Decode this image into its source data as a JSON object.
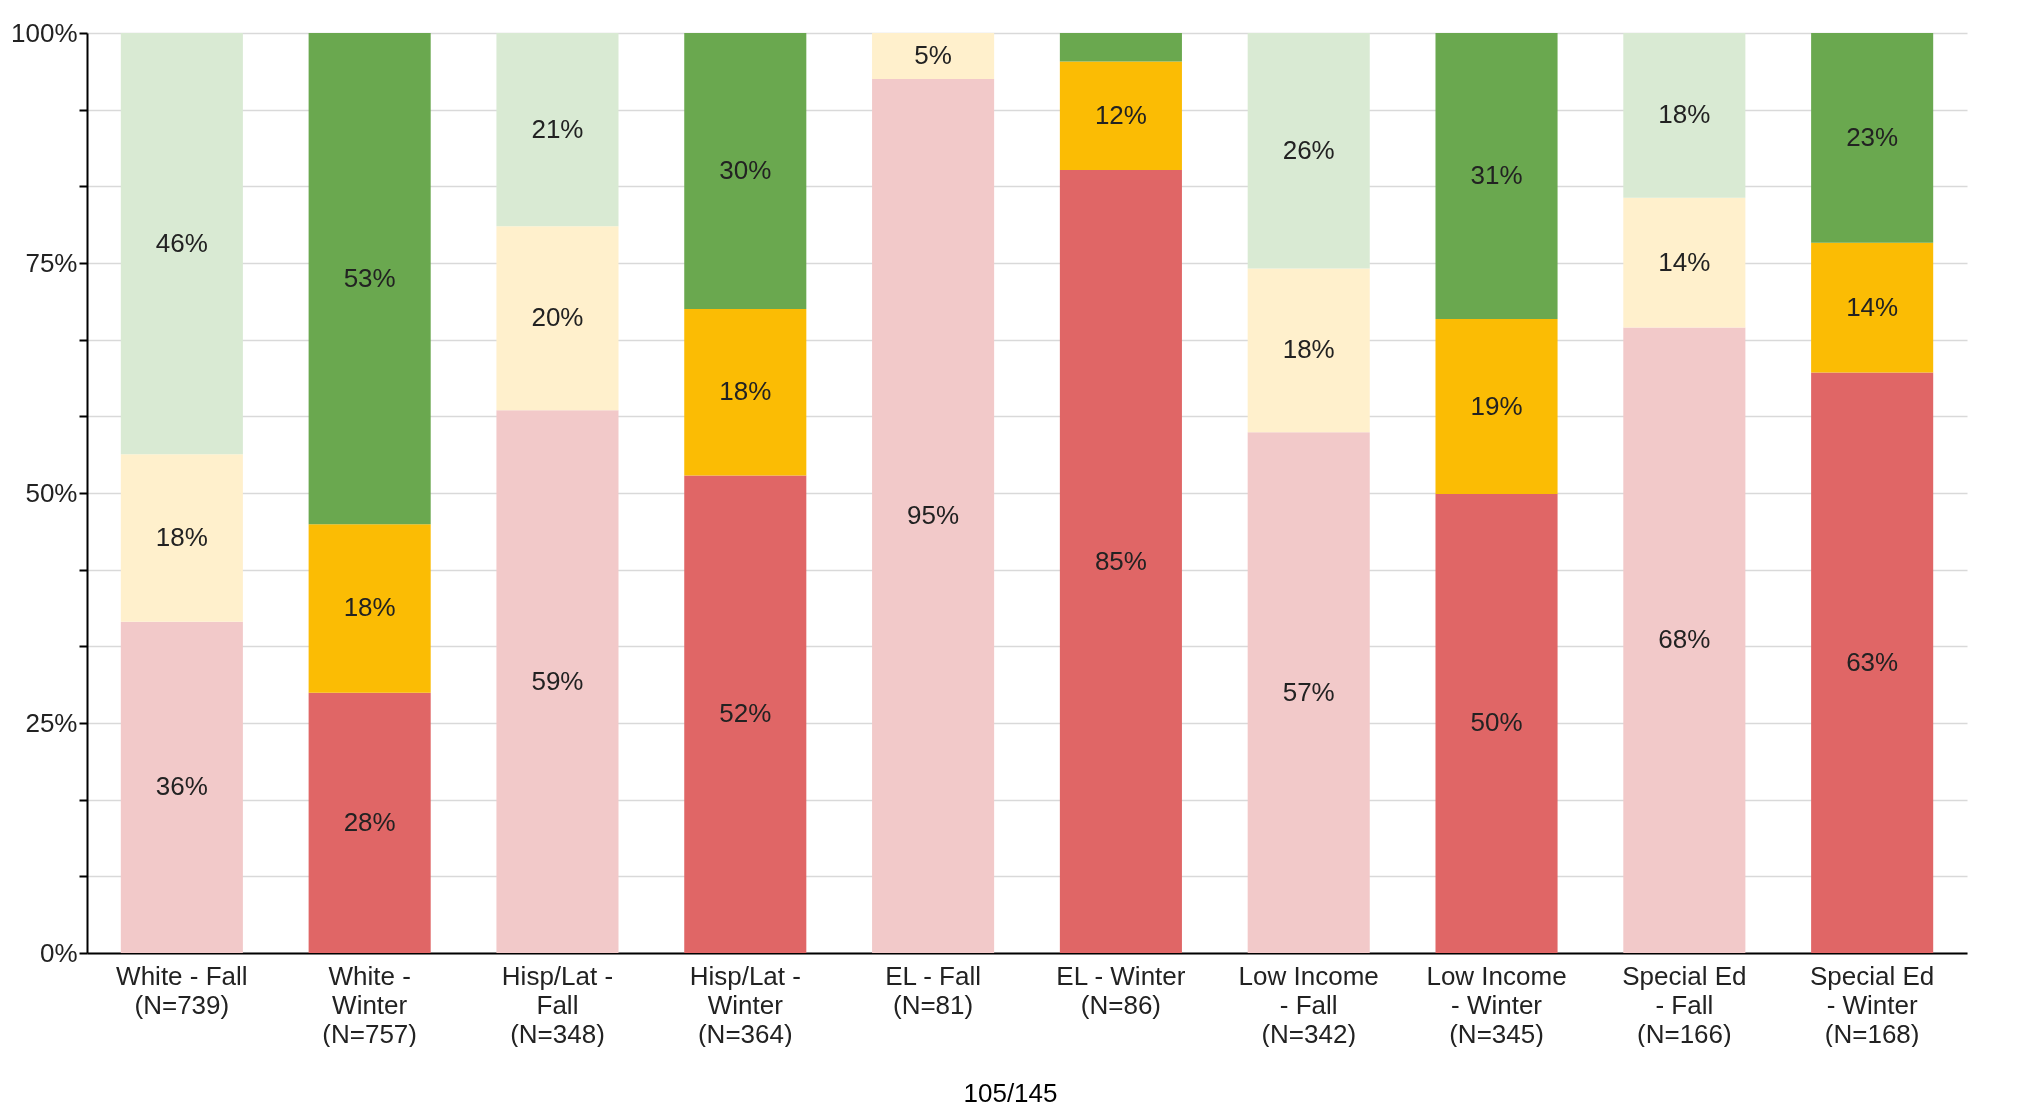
{
  "chart_data": {
    "type": "bar",
    "stacked": true,
    "categories": [
      "White - Fall\n(N=739)",
      "White -\nWinter\n(N=757)",
      "Hisp/Lat -\nFall\n(N=348)",
      "Hisp/Lat -\nWinter\n(N=364)",
      "EL - Fall\n(N=81)",
      "EL - Winter\n(N=86)",
      "Low Income\n- Fall\n(N=342)",
      "Low Income\n- Winter\n(N=345)",
      "Special Ed\n- Fall\n(N=166)",
      "Special Ed\n- Winter\n(N=168)"
    ],
    "series": [
      {
        "colors": [
          "#f2c9c9",
          "#e06666",
          "#f2c9c9",
          "#e06666",
          "#f2c9c9",
          "#e06666",
          "#f2c9c9",
          "#e06666",
          "#f2c9c9",
          "#e06666"
        ],
        "values": [
          36,
          28.3,
          59,
          51.9,
          95,
          85.1,
          56.6,
          49.9,
          68,
          63.1
        ],
        "value_labels": [
          "36%",
          "28%",
          "59%",
          "52%",
          "95%",
          "85%",
          "57%",
          "50%",
          "68%",
          "63%"
        ]
      },
      {
        "colors": [
          "#fff0cc",
          "#fbbc04",
          "#fff0cc",
          "#fbbc04",
          "#fff0cc",
          "#fbbc04",
          "#fff0cc",
          "#fbbc04",
          "#fff0cc",
          "#fbbc04"
        ],
        "values": [
          18.2,
          18.3,
          20,
          18.1,
          5,
          11.8,
          17.8,
          19,
          14.1,
          14.1
        ],
        "value_labels": [
          "18%",
          "18%",
          "20%",
          "18%",
          "5%",
          "12%",
          "18%",
          "19%",
          "14%",
          "14%"
        ]
      },
      {
        "colors": [
          "#d9ead3",
          "#6aa84f",
          "#d9ead3",
          "#6aa84f",
          null,
          "#6aa84f",
          "#d9ead3",
          "#6aa84f",
          "#d9ead3",
          "#6aa84f"
        ],
        "values": [
          45.8,
          53.4,
          21,
          30,
          null,
          3.1,
          25.6,
          31.1,
          17.9,
          22.8
        ],
        "value_labels": [
          "46%",
          "53%",
          "21%",
          "30%",
          null,
          null,
          "26%",
          "31%",
          "18%",
          "23%"
        ]
      }
    ],
    "ylim": [
      0,
      100
    ],
    "yticks": [
      {
        "value": 0,
        "label": "0%"
      },
      {
        "value": 8.33,
        "label": null
      },
      {
        "value": 16.67,
        "label": null
      },
      {
        "value": 25,
        "label": "25%"
      },
      {
        "value": 33.33,
        "label": null
      },
      {
        "value": 41.67,
        "label": null
      },
      {
        "value": 50,
        "label": "50%"
      },
      {
        "value": 58.33,
        "label": null
      },
      {
        "value": 66.67,
        "label": null
      },
      {
        "value": 75,
        "label": "75%"
      },
      {
        "value": 83.33,
        "label": null
      },
      {
        "value": 91.67,
        "label": null
      },
      {
        "value": 100,
        "label": "100%"
      }
    ],
    "grid": true,
    "annotations": [
      "105/145"
    ]
  }
}
